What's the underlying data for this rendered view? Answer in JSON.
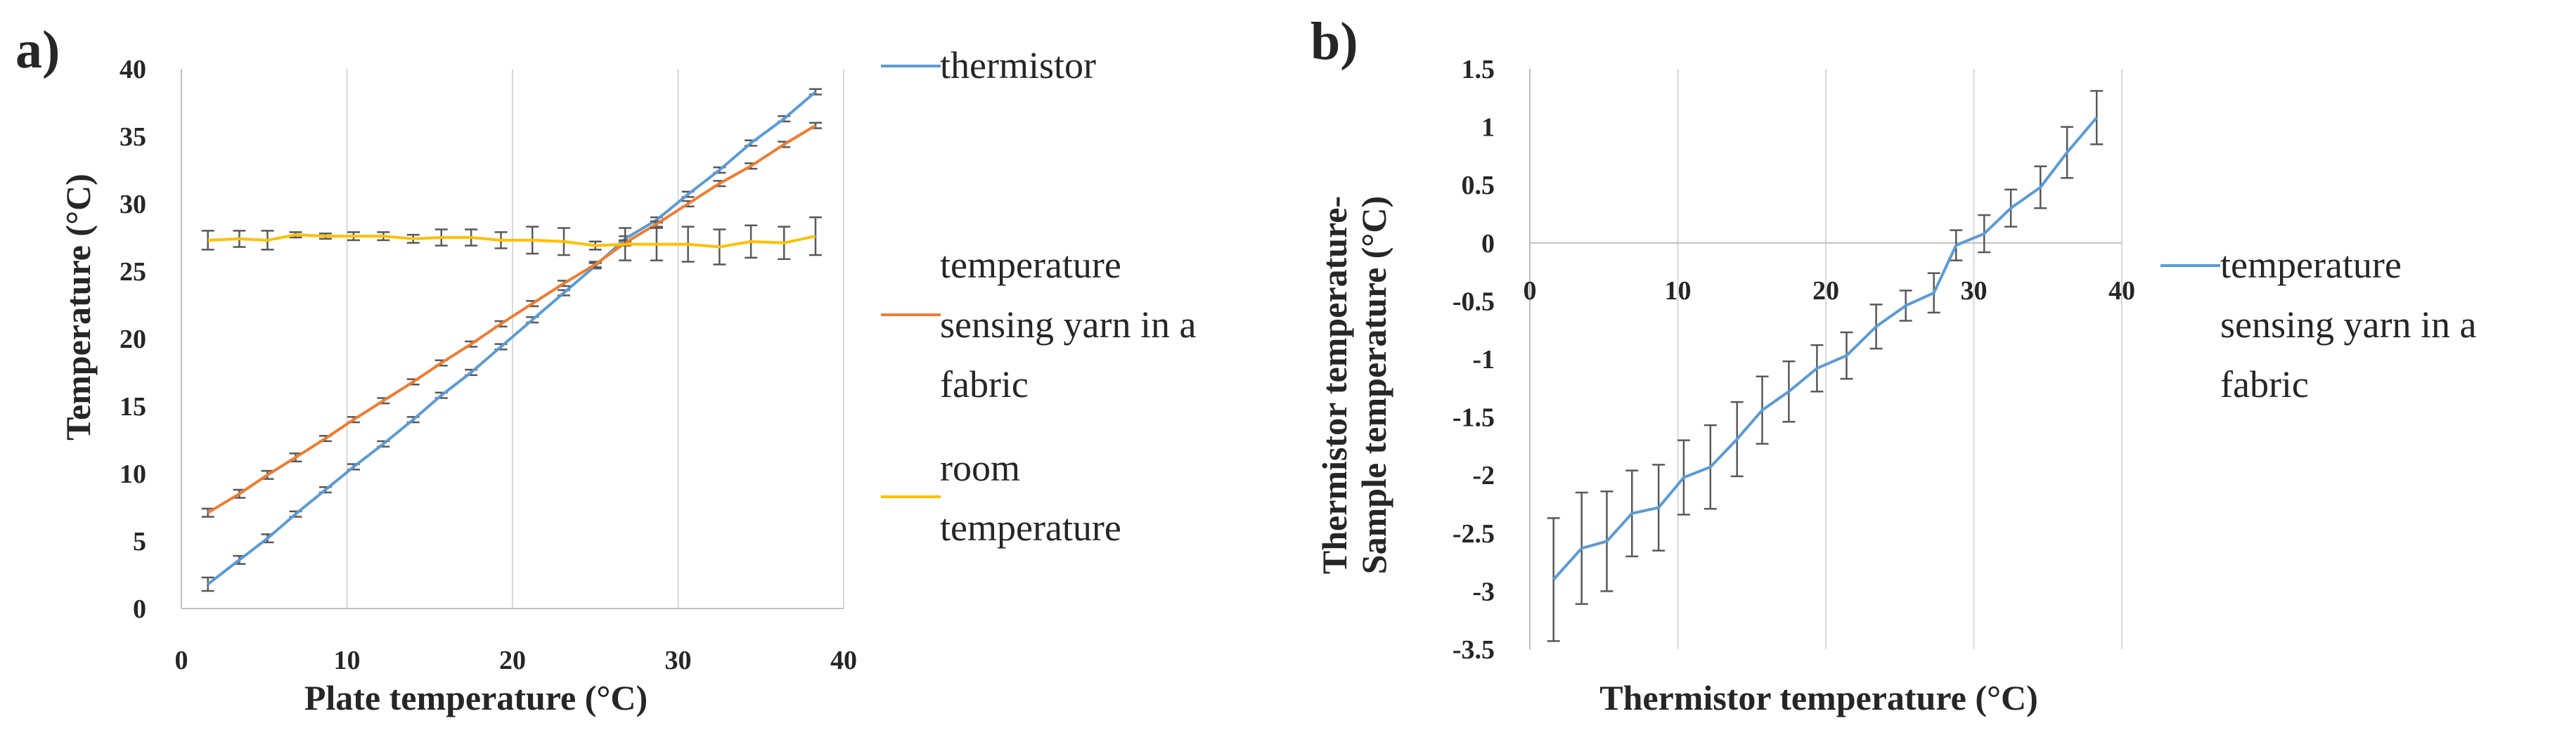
{
  "colors": {
    "thermistor": "#5B9BD5",
    "yarn": "#ED7D31",
    "room": "#FFC000",
    "errorbar": "#595959",
    "grid": "#d9d9d9"
  },
  "chart_data": [
    {
      "type": "line",
      "panel_label": "a)",
      "xlabel": "Plate temperature (°C)",
      "ylabel": "Temperature (°C)",
      "xlim": [
        0,
        40
      ],
      "ylim": [
        0,
        40
      ],
      "xticks": [
        0,
        10,
        20,
        30,
        40
      ],
      "yticks": [
        0,
        5,
        10,
        15,
        20,
        25,
        30,
        35,
        40
      ],
      "grid": "vertical",
      "legend_position": "right",
      "x": [
        1.6,
        3.5,
        5.2,
        6.9,
        8.7,
        10.4,
        12.2,
        14.0,
        15.7,
        17.5,
        19.3,
        21.2,
        23.1,
        25.0,
        26.8,
        28.7,
        30.6,
        32.5,
        34.4,
        36.4,
        38.3
      ],
      "series": [
        {
          "name": "thermistor",
          "color_key": "thermistor",
          "values": [
            1.8,
            3.6,
            5.2,
            7.0,
            8.8,
            10.5,
            12.2,
            14.0,
            15.8,
            17.5,
            19.4,
            21.4,
            23.4,
            25.4,
            27.4,
            28.8,
            30.7,
            32.5,
            34.5,
            36.3,
            38.3
          ],
          "errors": [
            0.5,
            0.3,
            0.3,
            0.2,
            0.2,
            0.2,
            0.2,
            0.2,
            0.2,
            0.2,
            0.2,
            0.2,
            0.2,
            0.2,
            0.2,
            0.2,
            0.2,
            0.2,
            0.2,
            0.2,
            0.2
          ]
        },
        {
          "name": "temperature sensing yarn in a fabric",
          "color_key": "yarn",
          "values": [
            7.1,
            8.5,
            9.9,
            11.2,
            12.6,
            14.0,
            15.4,
            16.8,
            18.2,
            19.6,
            21.1,
            22.6,
            24.1,
            25.5,
            27.1,
            28.5,
            30.0,
            31.5,
            32.8,
            34.4,
            35.8
          ],
          "errors": [
            0.3,
            0.3,
            0.3,
            0.3,
            0.2,
            0.2,
            0.2,
            0.2,
            0.2,
            0.2,
            0.2,
            0.2,
            0.2,
            0.2,
            0.2,
            0.2,
            0.2,
            0.2,
            0.2,
            0.2,
            0.2
          ]
        },
        {
          "name": "room temperature",
          "color_key": "room",
          "values": [
            27.3,
            27.4,
            27.3,
            27.7,
            27.6,
            27.6,
            27.6,
            27.4,
            27.5,
            27.5,
            27.3,
            27.3,
            27.2,
            26.9,
            27.0,
            27.0,
            27.0,
            26.8,
            27.2,
            27.1,
            27.6
          ],
          "errors": [
            0.7,
            0.6,
            0.7,
            0.2,
            0.2,
            0.3,
            0.3,
            0.3,
            0.6,
            0.6,
            0.6,
            1.0,
            1.0,
            0.3,
            1.2,
            1.2,
            1.3,
            1.3,
            1.2,
            1.2,
            1.4
          ]
        }
      ]
    },
    {
      "type": "line",
      "panel_label": "b)",
      "xlabel": "Thermistor temperature (°C)",
      "ylabel_lines": [
        "Thermistor temperature-",
        "Sample temperature (°C)"
      ],
      "xlim": [
        0,
        40
      ],
      "ylim": [
        -3.5,
        1.5
      ],
      "xticks": [
        10,
        20,
        30,
        40
      ],
      "xtick_zero_label": "0",
      "yticks": [
        "1.5",
        "1",
        "0.5",
        "0",
        "-0.5",
        "-1",
        "-1.5",
        "-2",
        "-2.5",
        "-3",
        "-3.5"
      ],
      "grid": "vertical",
      "legend_position": "right",
      "x": [
        1.6,
        3.5,
        5.2,
        6.9,
        8.7,
        10.4,
        12.2,
        14.0,
        15.7,
        17.5,
        19.4,
        21.4,
        23.4,
        25.4,
        27.3,
        28.8,
        30.7,
        32.5,
        34.5,
        36.3,
        38.3
      ],
      "series": [
        {
          "name": "temperature sensing yarn in a fabric",
          "color_key": "thermistor",
          "values": [
            -2.9,
            -2.63,
            -2.57,
            -2.33,
            -2.28,
            -2.02,
            -1.93,
            -1.69,
            -1.44,
            -1.28,
            -1.08,
            -0.97,
            -0.72,
            -0.54,
            -0.43,
            -0.02,
            0.08,
            0.3,
            0.48,
            0.78,
            1.08
          ],
          "errors": [
            0.53,
            0.48,
            0.43,
            0.37,
            0.37,
            0.32,
            0.36,
            0.32,
            0.29,
            0.26,
            0.2,
            0.2,
            0.19,
            0.13,
            0.17,
            0.13,
            0.16,
            0.16,
            0.18,
            0.22,
            0.23
          ]
        }
      ]
    }
  ]
}
